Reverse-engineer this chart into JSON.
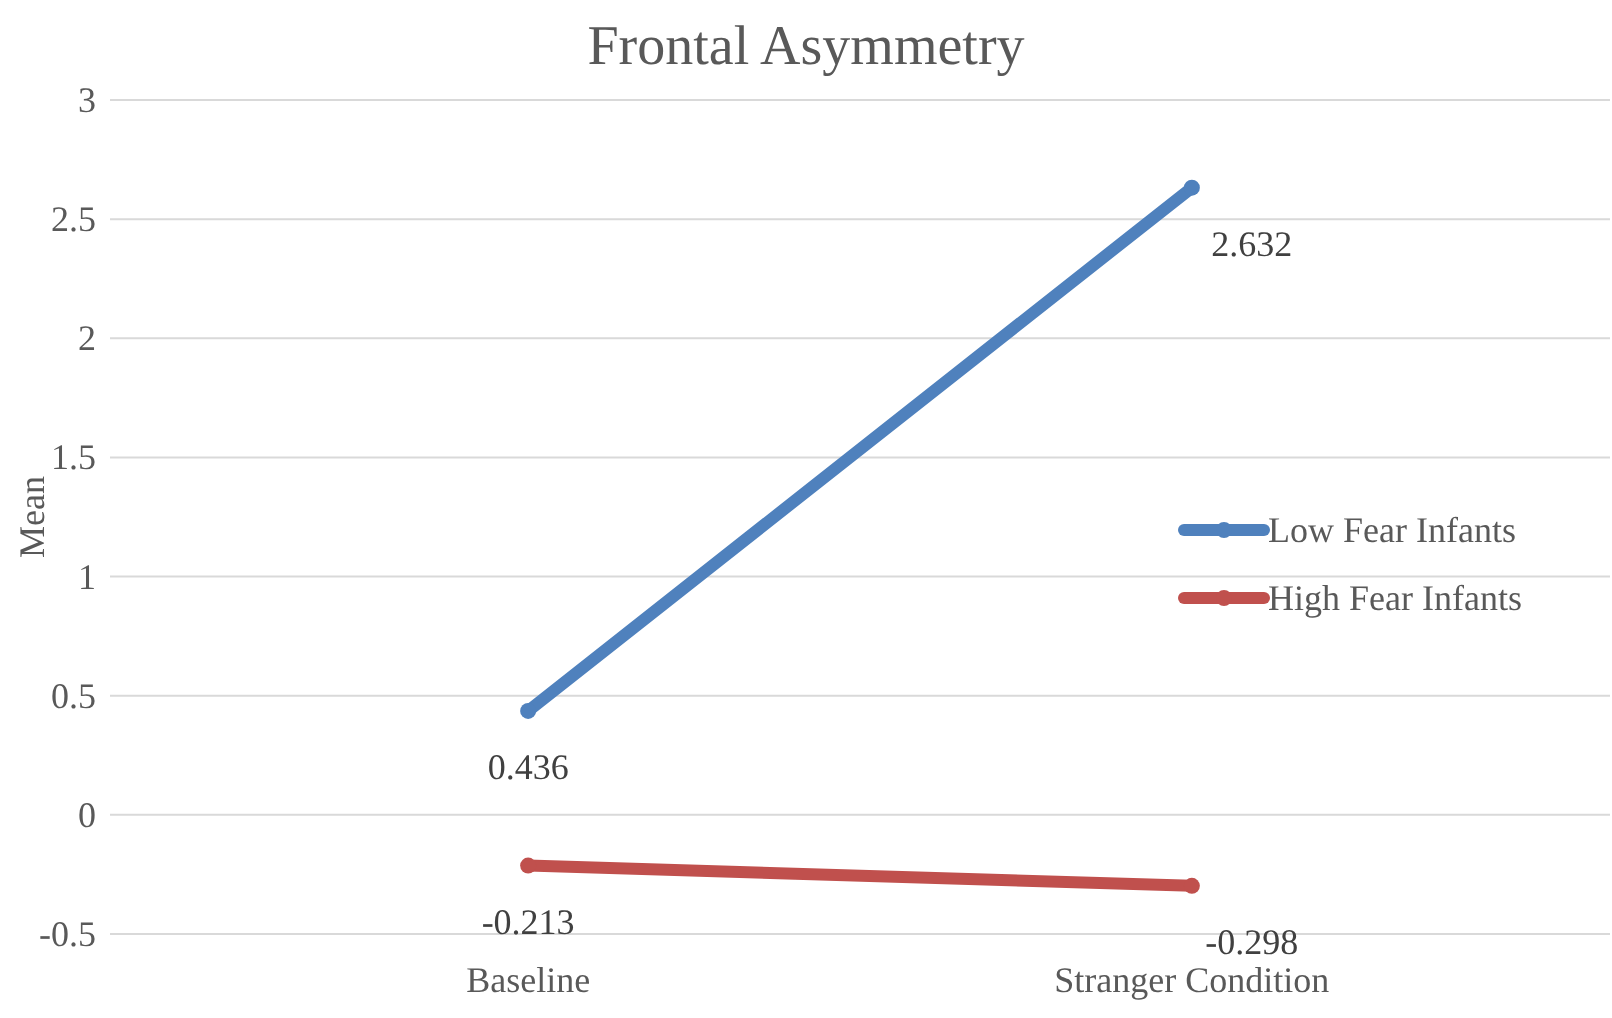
{
  "chart_data": {
    "type": "line",
    "title": "Frontal Asymmetry",
    "ylabel": "Mean",
    "categories": [
      "Baseline",
      "Stranger Condition"
    ],
    "series": [
      {
        "name": "Low Fear Infants",
        "color": "#4f81bd",
        "values": [
          0.436,
          2.632
        ]
      },
      {
        "name": "High Fear Infants",
        "color": "#c0504d",
        "values": [
          -0.213,
          -0.298
        ]
      }
    ],
    "ylim": [
      -0.5,
      3
    ],
    "yticks": [
      -0.5,
      0,
      0.5,
      1,
      1.5,
      2,
      2.5,
      3
    ],
    "grid": "y",
    "legend": "right",
    "marker": "circle",
    "data_labels": true
  }
}
